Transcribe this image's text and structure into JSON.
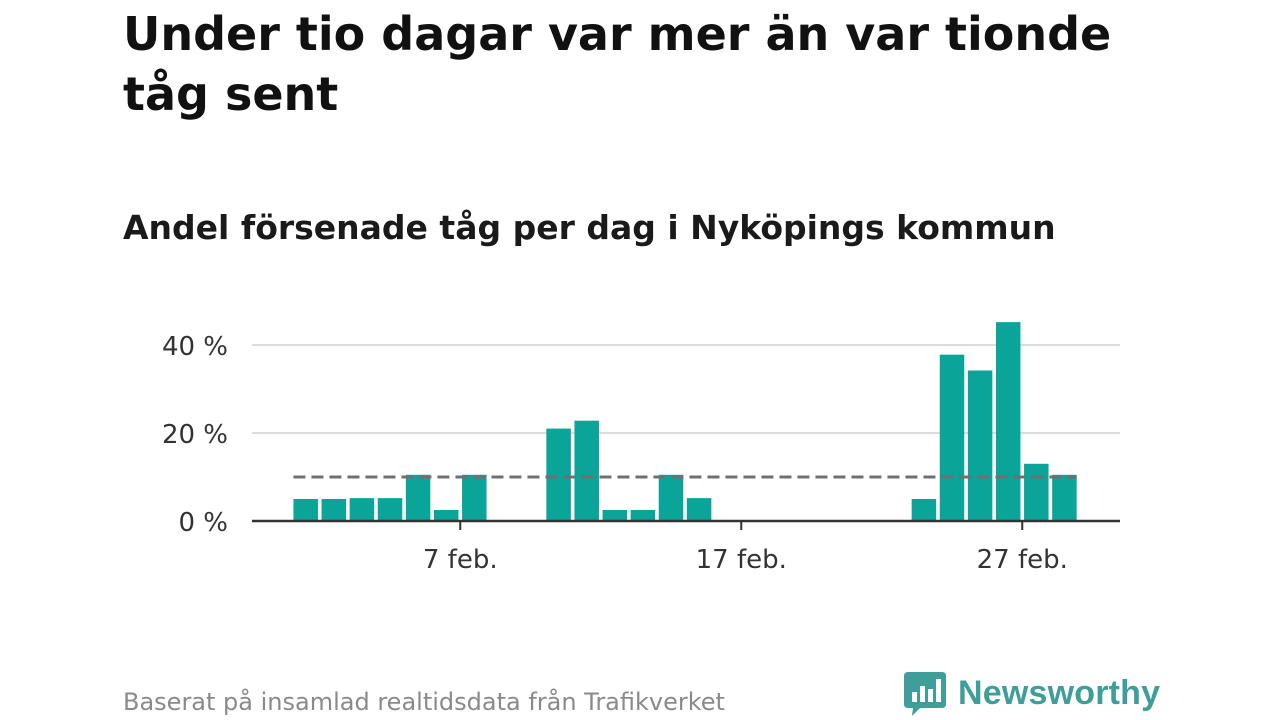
{
  "title": "Under tio dagar var mer än var tionde tåg sent",
  "subtitle": "Andel försenade tåg per dag i Nyköpings kommun",
  "footer": "Baserat på insamlad realtidsdata från Trafikverket",
  "brand": {
    "name": "Newsworthy",
    "icon": "newsworthy-bar-chart-icon",
    "color": "#3f9e9a"
  },
  "colors": {
    "bar": "#0aa598",
    "grid": "#dcdcdc",
    "axis": "#333333",
    "reference_line": "#707070"
  },
  "chart_data": {
    "type": "bar",
    "x_unit": "day of February",
    "x": [
      1,
      2,
      3,
      4,
      5,
      6,
      7,
      8,
      9,
      10,
      11,
      12,
      13,
      14,
      15,
      16,
      17,
      18,
      19,
      20,
      21,
      22,
      23,
      24,
      25,
      26,
      27,
      28
    ],
    "values": [
      5,
      5,
      5.2,
      5.2,
      10.5,
      2.5,
      10.5,
      0,
      0,
      21,
      22.8,
      2.5,
      2.5,
      10.5,
      5.2,
      0,
      0,
      0,
      0,
      0,
      0,
      0,
      5,
      37.8,
      34.2,
      45.2,
      13,
      10.5
    ],
    "x_ticks": [
      7,
      17,
      27
    ],
    "x_tick_labels": [
      "7 feb.",
      "17 feb.",
      "27 feb."
    ],
    "y_ticks": [
      0,
      20,
      40
    ],
    "y_tick_labels": [
      "0 %",
      "20 %",
      "40 %"
    ],
    "ylim": [
      0,
      47
    ],
    "reference_line": {
      "value": 10,
      "style": "dashed"
    },
    "grid": true,
    "legend": "none"
  }
}
